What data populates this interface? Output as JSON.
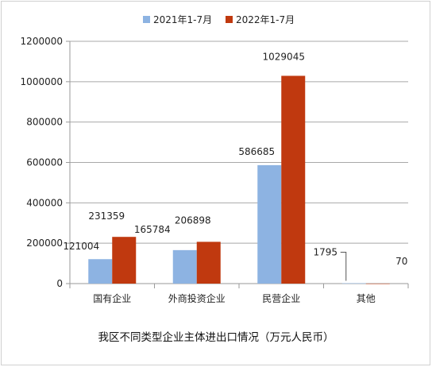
{
  "chart_data": {
    "type": "bar",
    "title": "我区不同类型企业主体进出口情况（万元人民币）",
    "categories": [
      "国有企业",
      "外商投资企业",
      "民营企业",
      "其他"
    ],
    "series": [
      {
        "name": "2021年1-7月",
        "color": "#8db3e2",
        "values": [
          121004,
          165784,
          586685,
          1795
        ],
        "labels": [
          "121004",
          "165784",
          "586685",
          "1795"
        ]
      },
      {
        "name": "2022年1-7月",
        "color": "#c0390f",
        "values": [
          231359,
          206898,
          1029045,
          70
        ],
        "labels": [
          "231359",
          "206898",
          "1029045",
          "70"
        ]
      }
    ],
    "ylim": [
      0,
      1200000
    ],
    "yticks": [
      0,
      200000,
      400000,
      600000,
      800000,
      1000000,
      1200000
    ],
    "ytick_labels": [
      "0",
      "200000",
      "400000",
      "600000",
      "800000",
      "1000000",
      "1200000"
    ],
    "grid": true,
    "legend_position": "top"
  }
}
